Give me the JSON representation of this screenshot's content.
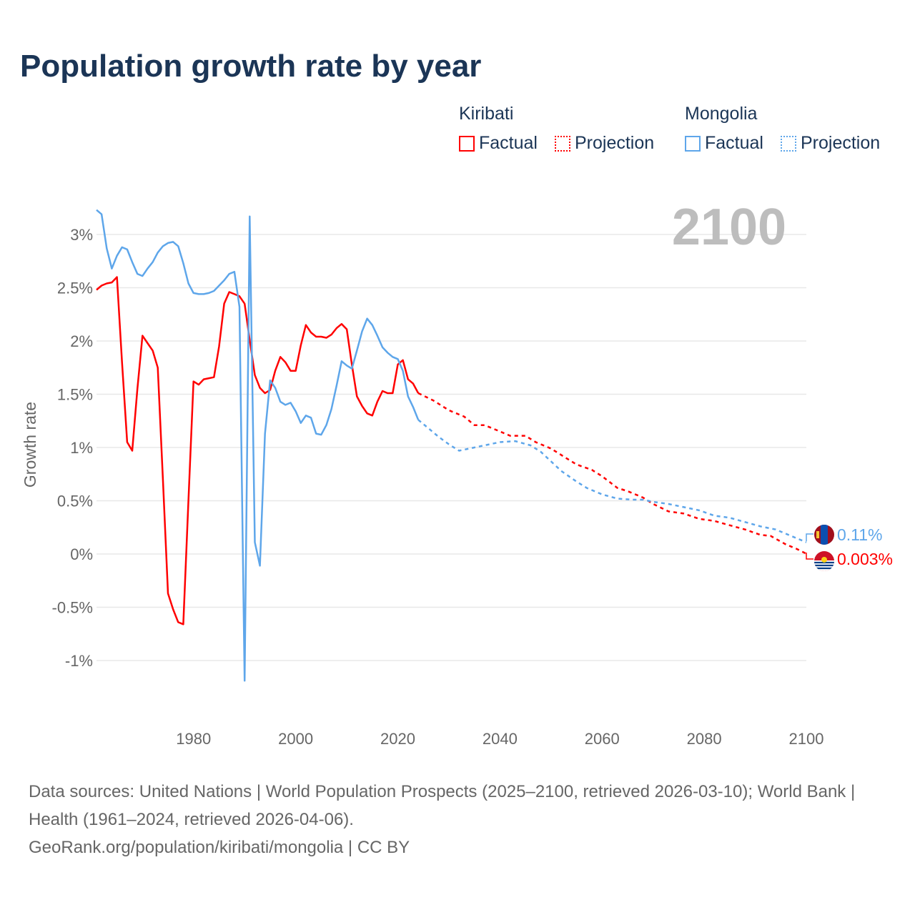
{
  "title": "Population growth rate by year",
  "legend": {
    "groups": [
      {
        "name": "Kiribati",
        "color": "#ff0000",
        "factual": "Factual",
        "projection": "Projection"
      },
      {
        "name": "Mongolia",
        "color": "#5ea6ea",
        "factual": "Factual",
        "projection": "Projection"
      }
    ]
  },
  "year_label": "2100",
  "end_labels": {
    "mongolia": "0.11%",
    "kiribati": "0.003%"
  },
  "source": {
    "line1": "Data sources: United Nations | World Population Prospects (2025–2100, retrieved 2026-03-10); World Bank | Health (1961–2024, retrieved 2026-04-06).",
    "line2": "GeoRank.org/population/kiribati/mongolia | CC BY"
  },
  "chart_data": {
    "type": "line",
    "title": "Population growth rate by year",
    "xlabel": "",
    "ylabel": "Growth rate",
    "xlim": [
      1961,
      2100
    ],
    "ylim": [
      -1.35,
      3.3
    ],
    "x_ticks": [
      "1980",
      "2000",
      "2020",
      "2040",
      "2060",
      "2080",
      "2100"
    ],
    "y_ticks": [
      {
        "v": 3,
        "label": "3%"
      },
      {
        "v": 2.5,
        "label": "2.5%"
      },
      {
        "v": 2,
        "label": "2%"
      },
      {
        "v": 1.5,
        "label": "1.5%"
      },
      {
        "v": 1,
        "label": "1%"
      },
      {
        "v": 0.5,
        "label": "0.5%"
      },
      {
        "v": 0,
        "label": "0%"
      },
      {
        "v": -0.5,
        "label": "-0.5%"
      },
      {
        "v": -1,
        "label": "-1%"
      }
    ],
    "grid": true,
    "legend_placement": "top-right",
    "series": [
      {
        "name": "Kiribati Factual",
        "color": "#ff0000",
        "dashed": false,
        "x_start": 1961,
        "values": [
          2.48,
          2.52,
          2.54,
          2.55,
          2.6,
          1.8,
          1.05,
          0.97,
          1.55,
          2.05,
          1.98,
          1.91,
          1.75,
          0.7,
          -0.37,
          -0.52,
          -0.64,
          -0.66,
          0.5,
          1.62,
          1.59,
          1.64,
          1.65,
          1.66,
          1.95,
          2.35,
          2.46,
          2.44,
          2.42,
          2.35,
          2.01,
          1.68,
          1.56,
          1.51,
          1.54,
          1.72,
          1.85,
          1.8,
          1.72,
          1.72,
          1.96,
          2.15,
          2.08,
          2.04,
          2.04,
          2.03,
          2.06,
          2.12,
          2.16,
          2.11,
          1.78,
          1.48,
          1.39,
          1.32,
          1.3,
          1.43,
          1.53,
          1.51,
          1.51,
          1.78,
          1.82,
          1.64,
          1.6,
          1.51
        ]
      },
      {
        "name": "Mongolia Factual",
        "color": "#5ea6ea",
        "dashed": false,
        "x_start": 1961,
        "values": [
          3.23,
          3.19,
          2.87,
          2.68,
          2.8,
          2.88,
          2.86,
          2.74,
          2.63,
          2.61,
          2.68,
          2.74,
          2.83,
          2.89,
          2.92,
          2.93,
          2.89,
          2.73,
          2.54,
          2.45,
          2.44,
          2.44,
          2.45,
          2.47,
          2.52,
          2.57,
          2.63,
          2.65,
          2.32,
          -1.19,
          3.17,
          0.11,
          -0.11,
          1.13,
          1.63,
          1.56,
          1.43,
          1.4,
          1.42,
          1.34,
          1.23,
          1.3,
          1.28,
          1.13,
          1.12,
          1.21,
          1.36,
          1.58,
          1.81,
          1.77,
          1.74,
          1.91,
          2.09,
          2.21,
          2.15,
          2.05,
          1.94,
          1.89,
          1.85,
          1.83,
          1.72,
          1.48,
          1.38,
          1.26
        ]
      },
      {
        "name": "Kiribati Projection",
        "color": "#ff0000",
        "dashed": true,
        "x": [
          2024,
          2027,
          2030,
          2033,
          2035,
          2037,
          2040,
          2042,
          2045,
          2047,
          2050,
          2053,
          2055,
          2058,
          2060,
          2063,
          2065,
          2068,
          2070,
          2073,
          2076,
          2079,
          2082,
          2085,
          2088,
          2091,
          2093,
          2096,
          2098,
          2100
        ],
        "values": [
          1.51,
          1.44,
          1.35,
          1.29,
          1.21,
          1.21,
          1.15,
          1.11,
          1.11,
          1.05,
          0.99,
          0.9,
          0.84,
          0.79,
          0.73,
          0.62,
          0.59,
          0.53,
          0.47,
          0.4,
          0.38,
          0.33,
          0.31,
          0.27,
          0.23,
          0.18,
          0.17,
          0.09,
          0.05,
          0.003
        ]
      },
      {
        "name": "Mongolia Projection",
        "color": "#5ea6ea",
        "dashed": true,
        "x": [
          2024,
          2026,
          2028,
          2030,
          2032,
          2035,
          2038,
          2040,
          2043,
          2046,
          2048,
          2050,
          2052,
          2055,
          2057,
          2060,
          2063,
          2066,
          2068,
          2070,
          2073,
          2076,
          2079,
          2082,
          2085,
          2088,
          2091,
          2094,
          2097,
          2100
        ],
        "values": [
          1.26,
          1.18,
          1.1,
          1.03,
          0.97,
          1.0,
          1.03,
          1.05,
          1.06,
          1.02,
          0.96,
          0.87,
          0.78,
          0.68,
          0.62,
          0.56,
          0.52,
          0.51,
          0.51,
          0.49,
          0.47,
          0.44,
          0.41,
          0.36,
          0.34,
          0.3,
          0.26,
          0.23,
          0.17,
          0.11
        ]
      }
    ]
  }
}
